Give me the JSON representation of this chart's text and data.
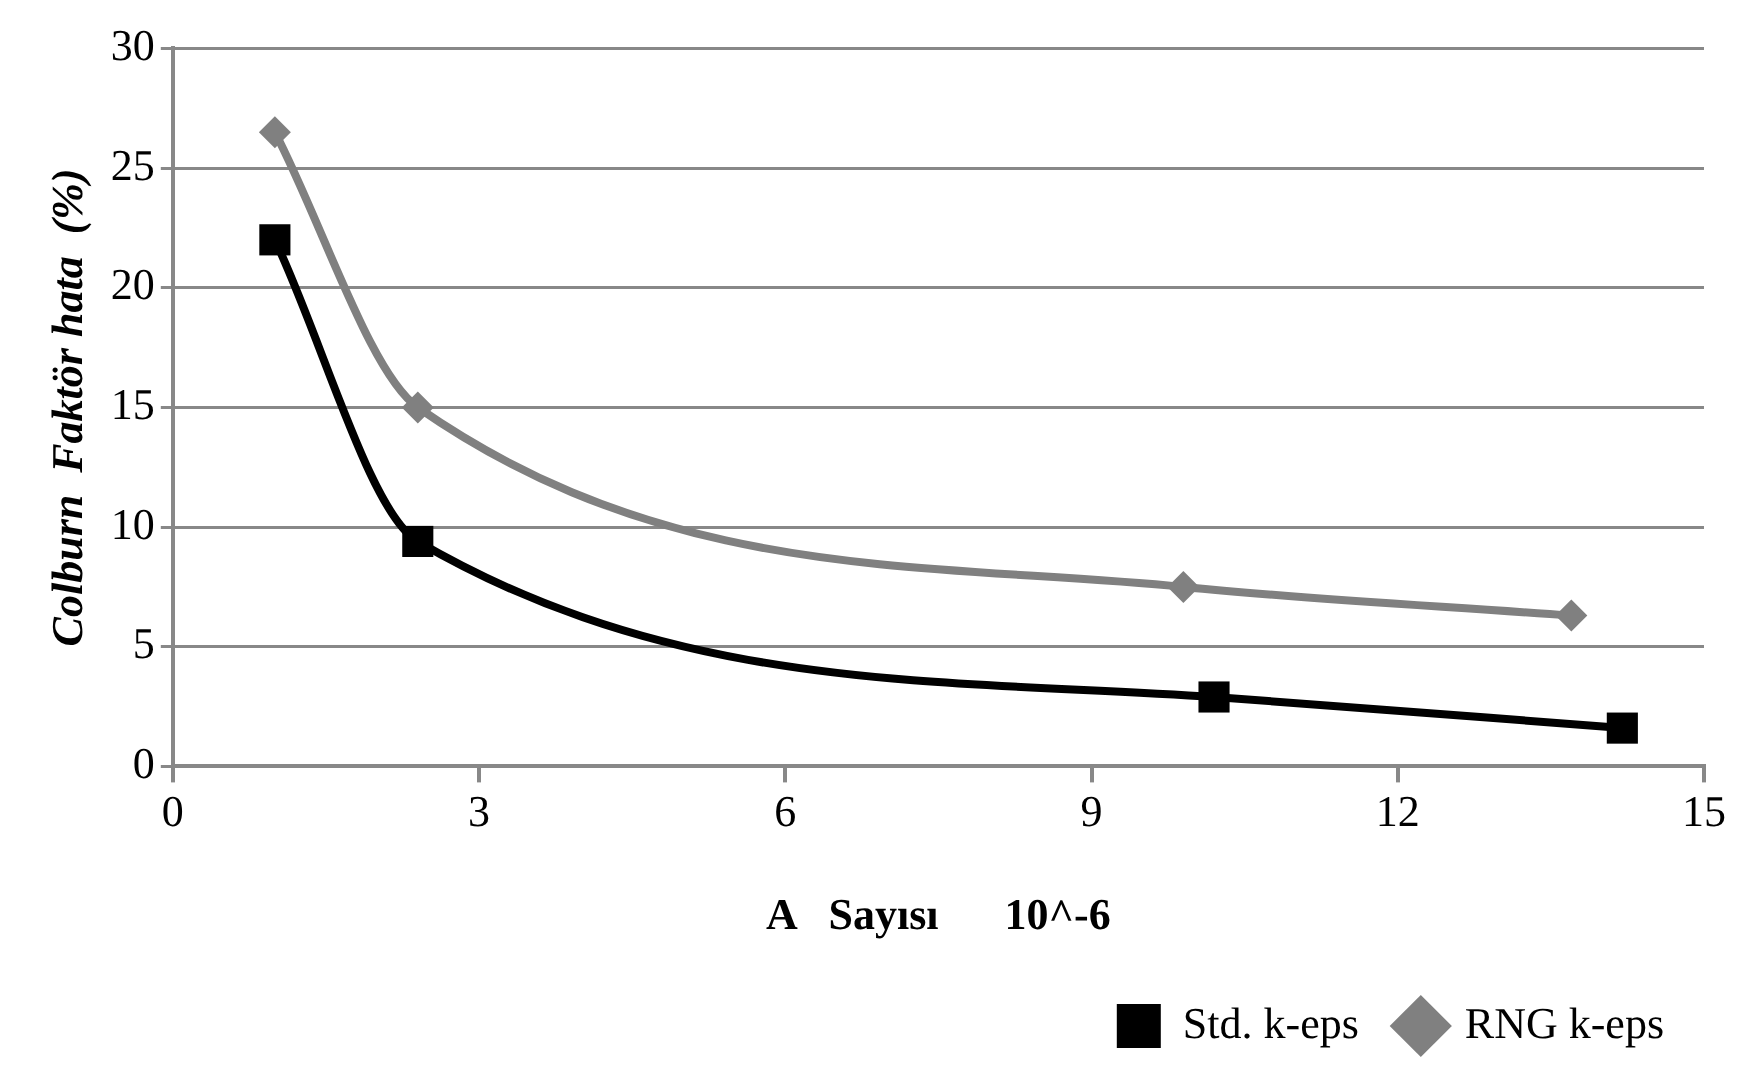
{
  "chart_data": {
    "type": "line",
    "xlabel": "A   Sayısı      10^-6",
    "ylabel": "Colburn  Faktör hata  (%)",
    "series": [
      {
        "name": "Std. k-eps",
        "color": "#000000",
        "marker": "square",
        "x": [
          1.0,
          2.4,
          10.2,
          14.2
        ],
        "values": [
          22.0,
          9.4,
          2.9,
          1.6
        ]
      },
      {
        "name": "RNG k-eps",
        "color": "#808080",
        "marker": "diamond",
        "x": [
          1.0,
          2.4,
          9.9,
          13.7
        ],
        "values": [
          26.5,
          15.0,
          7.5,
          6.3
        ]
      }
    ],
    "xlim": [
      0,
      15
    ],
    "xticks": [
      0,
      3,
      6,
      9,
      12,
      15
    ],
    "ylim": [
      0,
      30
    ],
    "yticks": [
      0,
      5,
      10,
      15,
      20,
      25,
      30
    ],
    "grid": "y",
    "legend": "bottom"
  }
}
